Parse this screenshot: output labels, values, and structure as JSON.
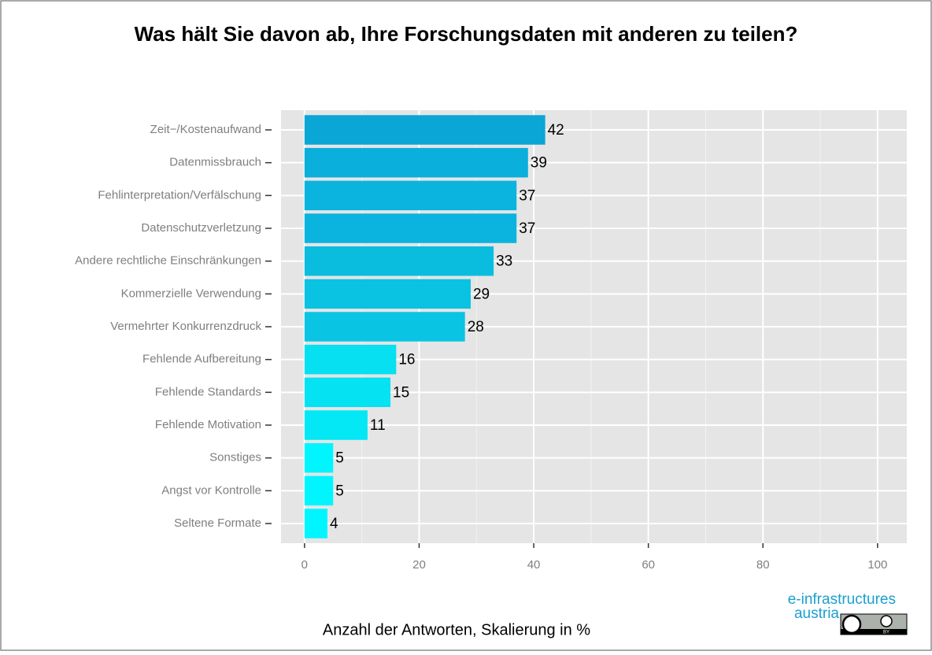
{
  "chart_data": {
    "type": "bar",
    "orientation": "horizontal",
    "title": "Was hält Sie davon ab, Ihre Forschungsdaten mit anderen zu teilen?",
    "x_label": "Anzahl der Antworten, Skalierung in %",
    "categories": [
      "Zeit−/Kostenaufwand",
      "Datenmissbrauch",
      "Fehlinterpretation/Verfälschung",
      "Datenschutzverletzung",
      "Andere rechtliche Einschränkungen",
      "Kommerzielle Verwendung",
      "Vermehrter Konkurrenzdruck",
      "Fehlende Aufbereitung",
      "Fehlende Standards",
      "Fehlende Motivation",
      "Sonstiges",
      "Angst vor Kontrolle",
      "Seltene Formate"
    ],
    "values": [
      42,
      39,
      37,
      37,
      33,
      29,
      28,
      16,
      15,
      11,
      5,
      5,
      4
    ],
    "colors": [
      "#0aa6d6",
      "#0aafdc",
      "#0ab4df",
      "#0ab4df",
      "#0abddf",
      "#0ac2e2",
      "#0ac4e4",
      "#06e0f0",
      "#05e2f2",
      "#04e8f5",
      "#00f5ff",
      "#00f5ff",
      "#00f6ff"
    ],
    "xlim": [
      -4.1,
      105.1
    ],
    "xticks": [
      0,
      20,
      40,
      60,
      80,
      100
    ],
    "minor_xticks": [
      10,
      30,
      50,
      70,
      90
    ],
    "grid": true,
    "logo": {
      "line1": "e-infrastructures",
      "line2": "austria",
      "license": "BY"
    }
  }
}
